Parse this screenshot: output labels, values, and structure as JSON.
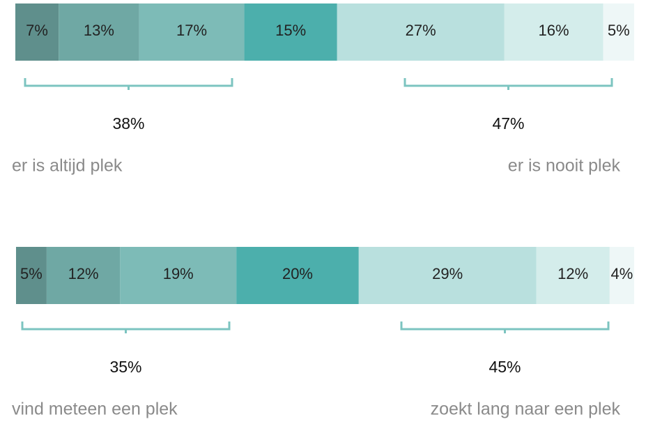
{
  "chart_data": [
    {
      "type": "stacked-bar",
      "values": [
        7,
        13,
        17,
        15,
        27,
        16,
        5
      ],
      "value_labels": [
        "7%",
        "13%",
        "17%",
        "15%",
        "27%",
        "16%",
        "5%"
      ],
      "colors": [
        "#5f8f8c",
        "#6fa8a4",
        "#7dbbb7",
        "#4cafac",
        "#b9e0de",
        "#d4edeb",
        "#eef7f7"
      ],
      "left": {
        "value": 38,
        "label": "38%",
        "caption": "er is altijd plek"
      },
      "right": {
        "value": 47,
        "label": "47%",
        "caption": "er is nooit plek"
      }
    },
    {
      "type": "stacked-bar",
      "values": [
        5,
        12,
        19,
        20,
        29,
        12,
        4
      ],
      "value_labels": [
        "5%",
        "12%",
        "19%",
        "20%",
        "29%",
        "12%",
        "4%"
      ],
      "colors": [
        "#5f8f8c",
        "#6fa8a4",
        "#7dbbb7",
        "#4cafac",
        "#b9e0de",
        "#d4edeb",
        "#eef7f7"
      ],
      "left": {
        "value": 35,
        "label": "35%",
        "caption": "vind meteen een plek"
      },
      "right": {
        "value": 45,
        "label": "45%",
        "caption": "zoekt lang naar een plek"
      }
    }
  ]
}
